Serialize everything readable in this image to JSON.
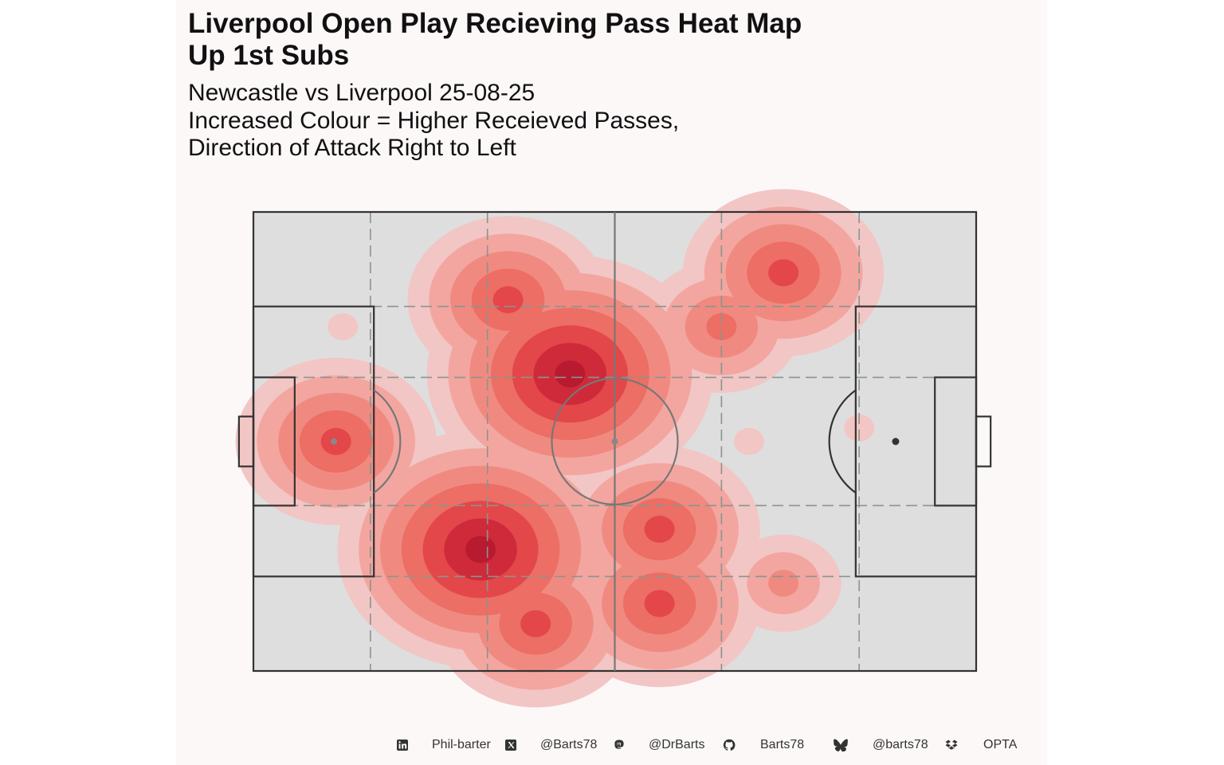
{
  "title": {
    "lines": [
      "Liverpool Open Play Recieving Pass Heat Map",
      "Up 1st Subs"
    ]
  },
  "subtitle": {
    "lines": [
      "Newcastle vs Liverpool 25-08-25",
      "Increased Colour = Higher Receieved Passes,",
      "Direction of Attack Right to Left"
    ]
  },
  "footer": {
    "items": [
      {
        "icon": "linkedin-icon",
        "text": "Phil-barter"
      },
      {
        "icon": "x-twitter-icon",
        "text": "@Barts78"
      },
      {
        "icon": "mastodon-icon",
        "text": "@DrBarts"
      },
      {
        "icon": "github-icon",
        "text": "Barts78"
      },
      {
        "icon": "bluesky-icon",
        "text": "@barts78"
      },
      {
        "icon": "dropbox-icon",
        "text": "OPTA"
      }
    ]
  },
  "colors": {
    "panel_background": "#fdf8f8",
    "pitch_fill": "#dedede",
    "pitch_lines": "#333333",
    "zone_lines": "#8a9490",
    "heat_levels": [
      "#f2c6c4",
      "#f3a6a0",
      "#f08a80",
      "#ec6e64",
      "#e3474a",
      "#cf2a3a",
      "#b81a30"
    ]
  },
  "chart_data": {
    "type": "heatmap",
    "subtype": "kernel-density-contours",
    "pitch": {
      "length": 105,
      "width": 68
    },
    "xlim": [
      0,
      105
    ],
    "ylim": [
      0,
      68
    ],
    "grid": "juego-de-posicion zones",
    "legend": "none",
    "density_levels": 7,
    "hotspots": [
      {
        "x": 33,
        "y": 50,
        "level": 7
      },
      {
        "x": 46,
        "y": 24,
        "level": 7
      },
      {
        "x": 12,
        "y": 34,
        "level": 5
      },
      {
        "x": 41,
        "y": 61,
        "level": 5
      },
      {
        "x": 59,
        "y": 58,
        "level": 5
      },
      {
        "x": 59,
        "y": 47,
        "level": 5
      },
      {
        "x": 77,
        "y": 9,
        "level": 5
      },
      {
        "x": 37,
        "y": 13,
        "level": 5
      },
      {
        "x": 68,
        "y": 17,
        "level": 4
      },
      {
        "x": 77,
        "y": 55,
        "level": 3
      },
      {
        "x": 88,
        "y": 32,
        "level": 1
      },
      {
        "x": 72,
        "y": 34,
        "level": 1
      },
      {
        "x": 13,
        "y": 17,
        "level": 1
      }
    ]
  }
}
